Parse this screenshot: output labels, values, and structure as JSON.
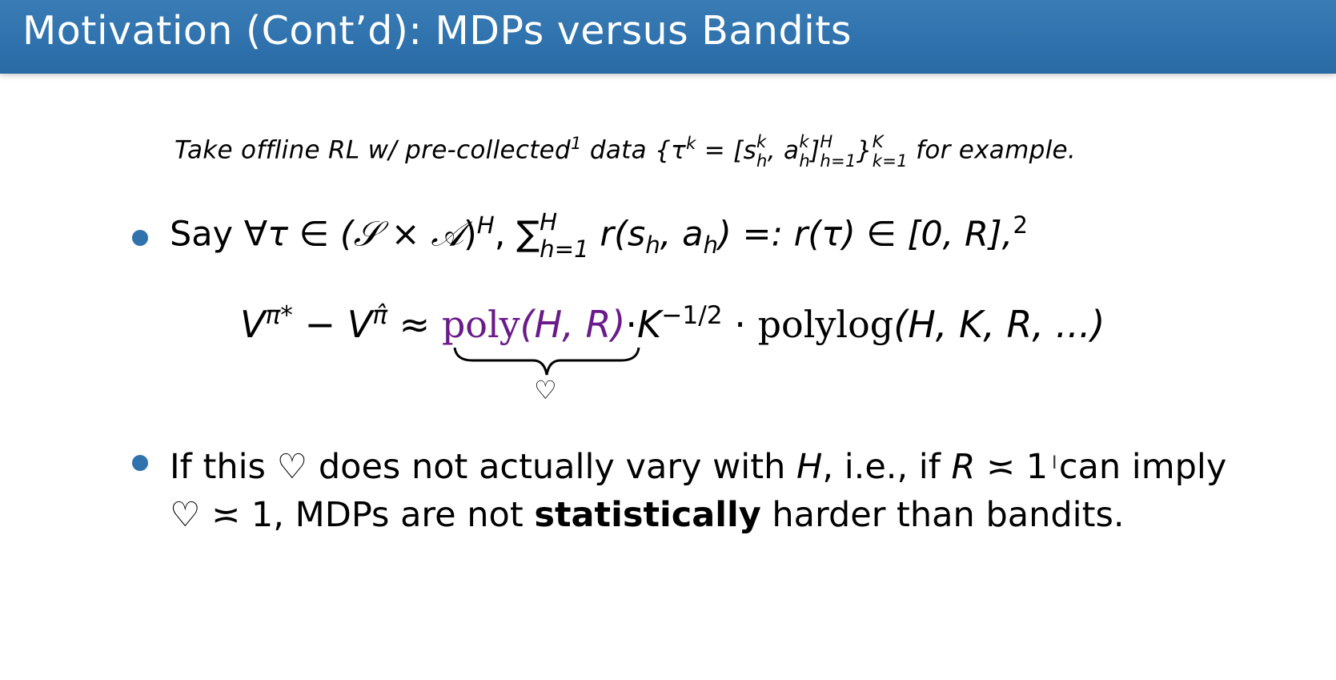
{
  "slide": {
    "title": "Motivation (Cont’d): MDPs versus Bandits",
    "intro": {
      "pre": "Take offline RL w/ pre-collected",
      "footnote": "1",
      "data_word": " data ",
      "tau_sup": "k",
      "s_k": "k",
      "s_h": "h",
      "a_k": "k",
      "a_h": "h",
      "inner_up": "H",
      "inner_dn": "h=1",
      "outer_up": "K",
      "outer_dn": "k=1",
      "post": " for example."
    },
    "bullet1": {
      "say": "Say ",
      "forall": "∀τ ∈ (",
      "S": "𝒮",
      "times": " × ",
      "A": "𝒜",
      "close": ")",
      "H_sup": "H",
      "comma": ", ",
      "sum": "∑",
      "sum_up": "H",
      "sum_dn": "h=1",
      "rest": " r(s",
      "sh": "h",
      "mid": ", a",
      "ah": "h",
      "tail": ") =: r(τ) ∈ [0, R],",
      "footnote": "2"
    },
    "formula": {
      "V1": "V",
      "V1_sup": "π*",
      "minus": " − ",
      "V2": "V",
      "V2_sup": "π̂",
      "approx": " ≈ ",
      "poly": "poly",
      "poly_args": "(H, R)",
      "dot1": "·",
      "K": "K",
      "K_sup": "−1/2",
      "dot2": " · ",
      "polylog": "polylog",
      "polylog_args": "(H, K, R, ...)",
      "brace_label": "♡"
    },
    "bullet2": {
      "line1_a": "If this ",
      "heart": "♡",
      "line1_b": " does not actually vary with ",
      "H": "H",
      "line1_c": ", i.e., if ",
      "R": "R",
      "line1_d": " ≍ 1 can imply",
      "line2_heart": "♡",
      "line2_a": " ≍ 1, MDPs are not ",
      "bold": "statistically",
      "line2_b": " harder than bandits."
    }
  },
  "colors": {
    "title_bar": "#2f72ad",
    "bullet": "#2f72ad",
    "highlight": "#6a1a8a"
  }
}
